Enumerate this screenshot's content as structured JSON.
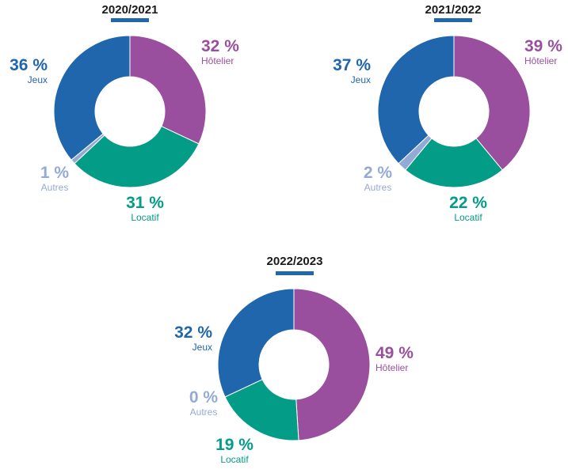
{
  "colors": {
    "Jeux": "#1f66ad",
    "Hôtelier": "#9a4f9e",
    "Locatif": "#039c87",
    "Autres": "#94aad6",
    "title_bar": "#1f66ad"
  },
  "chart_data": [
    {
      "type": "pie",
      "title": "2020/2021",
      "slices": [
        {
          "category": "Hôtelier",
          "value": 32,
          "label": "32 %"
        },
        {
          "category": "Locatif",
          "value": 31,
          "label": "31 %"
        },
        {
          "category": "Autres",
          "value": 1,
          "label": "1 %"
        },
        {
          "category": "Jeux",
          "value": 36,
          "label": "36 %"
        }
      ]
    },
    {
      "type": "pie",
      "title": "2021/2022",
      "slices": [
        {
          "category": "Hôtelier",
          "value": 39,
          "label": "39 %"
        },
        {
          "category": "Locatif",
          "value": 22,
          "label": "22 %"
        },
        {
          "category": "Autres",
          "value": 2,
          "label": "2 %"
        },
        {
          "category": "Jeux",
          "value": 37,
          "label": "37 %"
        }
      ]
    },
    {
      "type": "pie",
      "title": "2022/2023",
      "slices": [
        {
          "category": "Hôtelier",
          "value": 49,
          "label": "49 %"
        },
        {
          "category": "Locatif",
          "value": 19,
          "label": "19 %"
        },
        {
          "category": "Autres",
          "value": 0,
          "label": "0 %"
        },
        {
          "category": "Jeux",
          "value": 32,
          "label": "32 %"
        }
      ]
    }
  ]
}
